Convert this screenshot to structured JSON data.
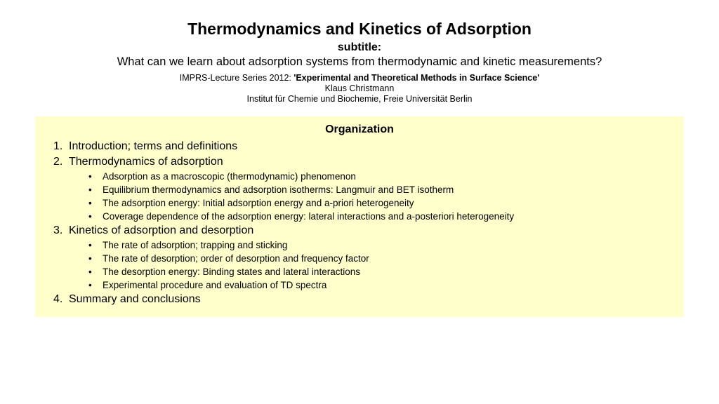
{
  "title": "Thermodynamics and Kinetics of Adsorption",
  "subtitle_label": "subtitle:",
  "subtitle_text": "What can we learn about adsorption systems from thermodynamic and kinetic measurements?",
  "series_prefix": "IMPRS-Lecture Series 2012: ",
  "series_bold": "'Experimental and Theoretical Methods in Surface Science'",
  "author": "Klaus Christmann",
  "affiliation": "Institut für Chemie und Biochemie, Freie Universität Berlin",
  "org_heading": "Organization",
  "items": [
    {
      "num": "1.",
      "text": "Introduction; terms and definitions",
      "sub": []
    },
    {
      "num": "2.",
      "text": "Thermodynamics of adsorption",
      "sub": [
        "Adsorption as a macroscopic (thermodynamic) phenomenon",
        "Equilibrium thermodynamics and adsorption isotherms: Langmuir and BET isotherm",
        "The adsorption energy: Initial adsorption energy and a-priori heterogeneity",
        "Coverage dependence of the adsorption energy: lateral interactions and a-posteriori heterogeneity"
      ]
    },
    {
      "num": "3.",
      "text": "Kinetics of adsorption and desorption",
      "sub": [
        "The rate of adsorption; trapping and sticking",
        "The rate of desorption; order of desorption and frequency factor",
        "The desorption energy: Binding states and lateral interactions",
        "Experimental procedure and evaluation of TD spectra"
      ]
    },
    {
      "num": "4.",
      "text": "Summary and conclusions",
      "sub": []
    }
  ],
  "colors": {
    "background": "#ffffff",
    "text": "#000000",
    "box_bg": "#ffffcc"
  }
}
